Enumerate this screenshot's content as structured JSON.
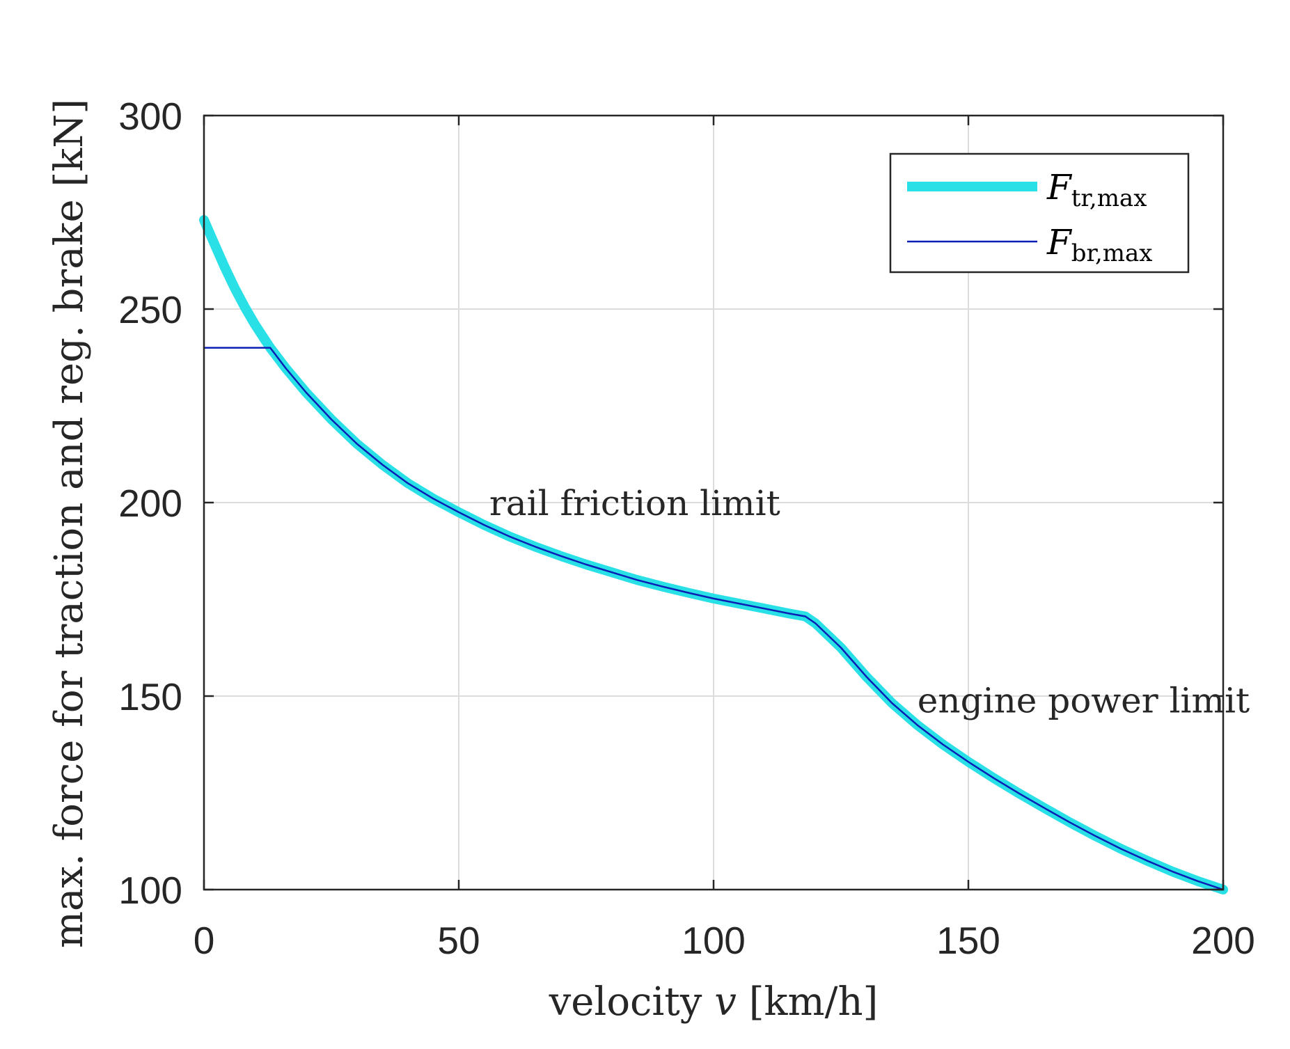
{
  "chart_data": {
    "type": "line",
    "xlabel_parts": {
      "pre": "velocity ",
      "var": "v",
      "post": " [km/h]"
    },
    "ylabel": "max. force for traction and reg. brake [kN]",
    "xlim": [
      0,
      200
    ],
    "ylim": [
      100,
      300
    ],
    "x_ticks": [
      0,
      50,
      100,
      150,
      200
    ],
    "y_ticks": [
      100,
      150,
      200,
      250,
      300
    ],
    "x_tick_labels": [
      "0",
      "50",
      "100",
      "150",
      "200"
    ],
    "y_tick_labels": [
      "100",
      "150",
      "200",
      "250",
      "300"
    ],
    "grid": true,
    "legend_placement": "top-right",
    "series": [
      {
        "name_main": "F",
        "name_sub": "tr,max",
        "color": "#29e0e6",
        "x": [
          0,
          2,
          4,
          6,
          8,
          10,
          12,
          13,
          16,
          20,
          25,
          30,
          35,
          40,
          45,
          50,
          55,
          60,
          65,
          70,
          75,
          80,
          85,
          90,
          95,
          100,
          105,
          110,
          115,
          118,
          120,
          125,
          130,
          135,
          140,
          145,
          150,
          155,
          160,
          165,
          170,
          175,
          180,
          185,
          190,
          195,
          200
        ],
        "y": [
          273,
          267,
          261,
          255.5,
          250.5,
          246,
          242,
          240,
          234.8,
          228.5,
          221.5,
          215.2,
          209.8,
          205,
          201,
          197.5,
          194.2,
          191.2,
          188.6,
          186.2,
          184,
          182,
          180,
          178.3,
          176.7,
          175.2,
          173.9,
          172.6,
          171.3,
          170.6,
          168.8,
          162.5,
          155,
          148.2,
          142.5,
          137.5,
          133,
          128.8,
          124.8,
          121,
          117.3,
          113.8,
          110.5,
          107.5,
          104.7,
          102.2,
          100
        ]
      },
      {
        "name_main": "F",
        "name_sub": "br,max",
        "color": "#0a1fb5",
        "x": [
          0,
          13,
          16,
          20,
          25,
          30,
          35,
          40,
          45,
          50,
          55,
          60,
          65,
          70,
          75,
          80,
          85,
          90,
          95,
          100,
          105,
          110,
          115,
          118,
          120,
          125,
          130,
          135,
          140,
          145,
          150,
          155,
          160,
          165,
          170,
          175,
          180,
          185,
          190,
          195,
          200
        ],
        "y": [
          240,
          240,
          234.8,
          228.5,
          221.5,
          215.2,
          209.8,
          205,
          201,
          197.5,
          194.2,
          191.2,
          188.6,
          186.2,
          184,
          182,
          180,
          178.3,
          176.7,
          175.2,
          173.9,
          172.6,
          171.3,
          170.6,
          168.8,
          162.5,
          155,
          148.2,
          142.5,
          137.5,
          133,
          128.8,
          124.8,
          121,
          117.3,
          113.8,
          110.5,
          107.5,
          104.7,
          102.2,
          100
        ]
      }
    ],
    "annotations": [
      {
        "text": "rail friction limit",
        "x": 56,
        "y": 200
      },
      {
        "text": "engine power limit",
        "x": 140,
        "y": 149
      }
    ]
  }
}
